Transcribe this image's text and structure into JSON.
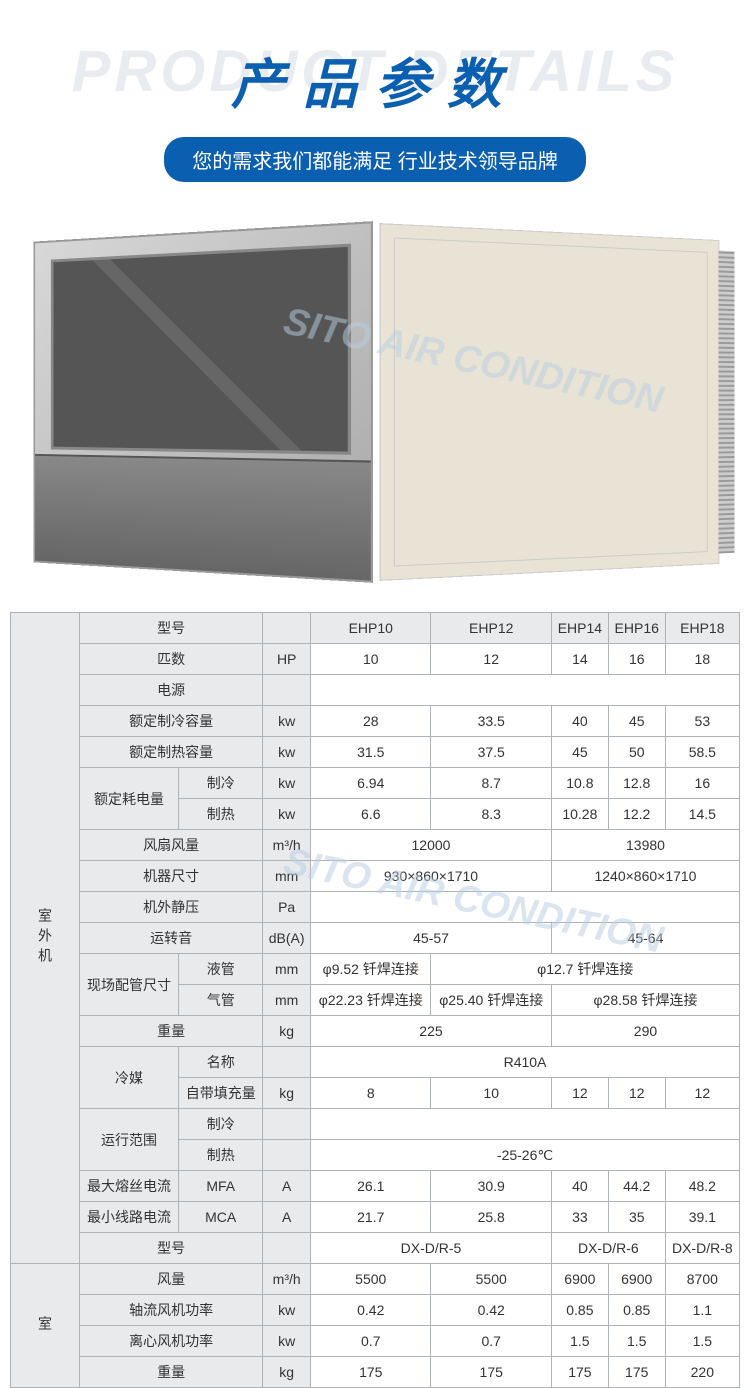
{
  "header": {
    "bg_text": "PRODUCT DETAILS",
    "title": "产品参数",
    "subtitle": "您的需求我们都能满足 行业技术领导品牌"
  },
  "watermark": {
    "text1": "SITO AIR CONDITION",
    "text2": "SITO AIR CONDITION"
  },
  "colors": {
    "primary": "#0b5fb0",
    "bg_text": "#e8ebef",
    "border": "#aeb3b8",
    "cell_bg": "#e8eaec"
  },
  "table": {
    "section1_label": "室外机",
    "section2_label": "室",
    "rows": {
      "model": {
        "label": "型号",
        "cols": [
          "EHP10",
          "EHP12",
          "EHP14",
          "EHP16",
          "EHP18"
        ]
      },
      "hp": {
        "label": "匹数",
        "unit": "HP",
        "vals": [
          "10",
          "12",
          "14",
          "16",
          "18"
        ]
      },
      "power": {
        "label": "电源"
      },
      "cooling_cap": {
        "label": "额定制冷容量",
        "unit": "kw",
        "vals": [
          "28",
          "33.5",
          "40",
          "45",
          "53"
        ]
      },
      "heating_cap": {
        "label": "额定制热容量",
        "unit": "kw",
        "vals": [
          "31.5",
          "37.5",
          "45",
          "50",
          "58.5"
        ]
      },
      "rated_power": {
        "label": "额定耗电量",
        "sub1": "制冷",
        "sub2": "制热",
        "unit": "kw",
        "v1": [
          "6.94",
          "8.7",
          "10.8",
          "12.8",
          "16"
        ],
        "v2": [
          "6.6",
          "8.3",
          "10.28",
          "12.2",
          "14.5"
        ]
      },
      "fan_flow": {
        "label": "风扇风量",
        "unit": "m³/h",
        "v1": "12000",
        "v2": "13980"
      },
      "size": {
        "label": "机器尺寸",
        "unit": "mm",
        "v1": "930×860×1710",
        "v2": "1240×860×1710"
      },
      "ext_static": {
        "label": "机外静压",
        "unit": "Pa"
      },
      "noise": {
        "label": "运转音",
        "unit": "dB(A)",
        "v1": "45-57",
        "v2": "45-64"
      },
      "pipe": {
        "label": "现场配管尺寸",
        "sub1": "液管",
        "sub2": "气管",
        "unit": "mm",
        "liq1": "φ9.52 钎焊连接",
        "liq2": "φ12.7 钎焊连接",
        "gas1": "φ22.23 钎焊连接",
        "gas2": "φ25.40 钎焊连接",
        "gas3": "φ28.58 钎焊连接"
      },
      "weight": {
        "label": "重量",
        "unit": "kg",
        "v1": "225",
        "v2": "290"
      },
      "refrig": {
        "label": "冷媒",
        "sub1": "名称",
        "sub2": "自带填充量",
        "unit": "kg",
        "name": "R410A",
        "vals": [
          "8",
          "10",
          "12",
          "12",
          "12"
        ]
      },
      "range": {
        "label": "运行范围",
        "sub1": "制冷",
        "sub2": "制热",
        "heat": "-25-26℃"
      },
      "mfa": {
        "label": "最大熔丝电流",
        "sub": "MFA",
        "unit": "A",
        "vals": [
          "26.1",
          "30.9",
          "40",
          "44.2",
          "48.2"
        ]
      },
      "mca": {
        "label": "最小线路电流",
        "sub": "MCA",
        "unit": "A",
        "vals": [
          "21.7",
          "25.8",
          "33",
          "35",
          "39.1"
        ]
      },
      "indoor_model": {
        "label": "型号",
        "v1": "DX-D/R-5",
        "v2": "DX-D/R-6",
        "v3": "DX-D/R-8"
      },
      "indoor_flow": {
        "label": "风量",
        "unit": "m³/h",
        "vals": [
          "5500",
          "5500",
          "6900",
          "6900",
          "8700"
        ]
      },
      "axial": {
        "label": "轴流风机功率",
        "unit": "kw",
        "vals": [
          "0.42",
          "0.42",
          "0.85",
          "0.85",
          "1.1"
        ]
      },
      "centrif": {
        "label": "离心风机功率",
        "unit": "kw",
        "vals": [
          "0.7",
          "0.7",
          "1.5",
          "1.5",
          "1.5"
        ]
      },
      "indoor_weight": {
        "label": "重量",
        "unit": "kg",
        "vals": [
          "175",
          "175",
          "175",
          "175",
          "220"
        ]
      }
    }
  }
}
